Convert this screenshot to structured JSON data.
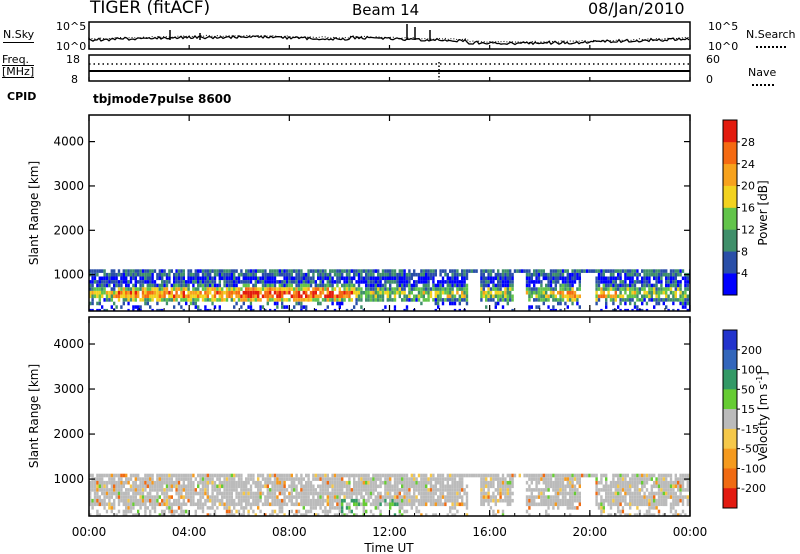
{
  "header": {
    "title": "TIGER (fitACF)",
    "beam": "Beam 14",
    "date": "08/Jan/2010"
  },
  "noise_panel": {
    "left_label": "N.Sky",
    "right_label": "N.Search",
    "left_ticks": [
      "10^5",
      "10^0"
    ],
    "right_ticks": [
      "10^5",
      "10^0"
    ]
  },
  "freq_panel": {
    "left_label_1": "Freq.",
    "left_label_2": "[MHz]",
    "right_label": "Nave",
    "left_ticks": [
      "18",
      "8"
    ],
    "right_ticks": [
      "60",
      "0"
    ]
  },
  "cpid": {
    "label": "CPID",
    "text": "tbjmode7pulse 8600"
  },
  "chart_data": [
    {
      "type": "heatmap",
      "name": "power",
      "ylabel": "Slant Range [km]",
      "y_ticks": [
        1000,
        2000,
        3000,
        4000
      ],
      "ylim": [
        180,
        4600
      ],
      "colorbar_label": "Power [dB]",
      "colorbar_ticks": [
        "4",
        "8",
        "12",
        "16",
        "20",
        "24",
        "28"
      ],
      "colors": [
        "#0000ff",
        "#2a4fa8",
        "#3f8f6a",
        "#62c44a",
        "#f2d21f",
        "#f7a21d",
        "#f56a12",
        "#e31b0e"
      ]
    },
    {
      "type": "heatmap",
      "name": "velocity",
      "ylabel": "Slant Range [km]",
      "y_ticks": [
        1000,
        2000,
        3000,
        4000
      ],
      "ylim": [
        180,
        4600
      ],
      "colorbar_label": "Velocity [m s^-1]",
      "colorbar_ticks": [
        "200",
        "100",
        "50",
        "15",
        "-15",
        "-50",
        "-100",
        "-200"
      ],
      "colors": [
        "#2233cc",
        "#3366bb",
        "#339966",
        "#66cc33",
        "#bbbbbb",
        "#f5c84a",
        "#f59a1e",
        "#f06a12",
        "#e21a10"
      ]
    }
  ],
  "x_axis": {
    "label": "Time UT",
    "ticks": [
      "00:00",
      "04:00",
      "08:00",
      "12:00",
      "16:00",
      "20:00",
      "00:00"
    ],
    "xlim_hours": [
      0,
      24
    ]
  }
}
